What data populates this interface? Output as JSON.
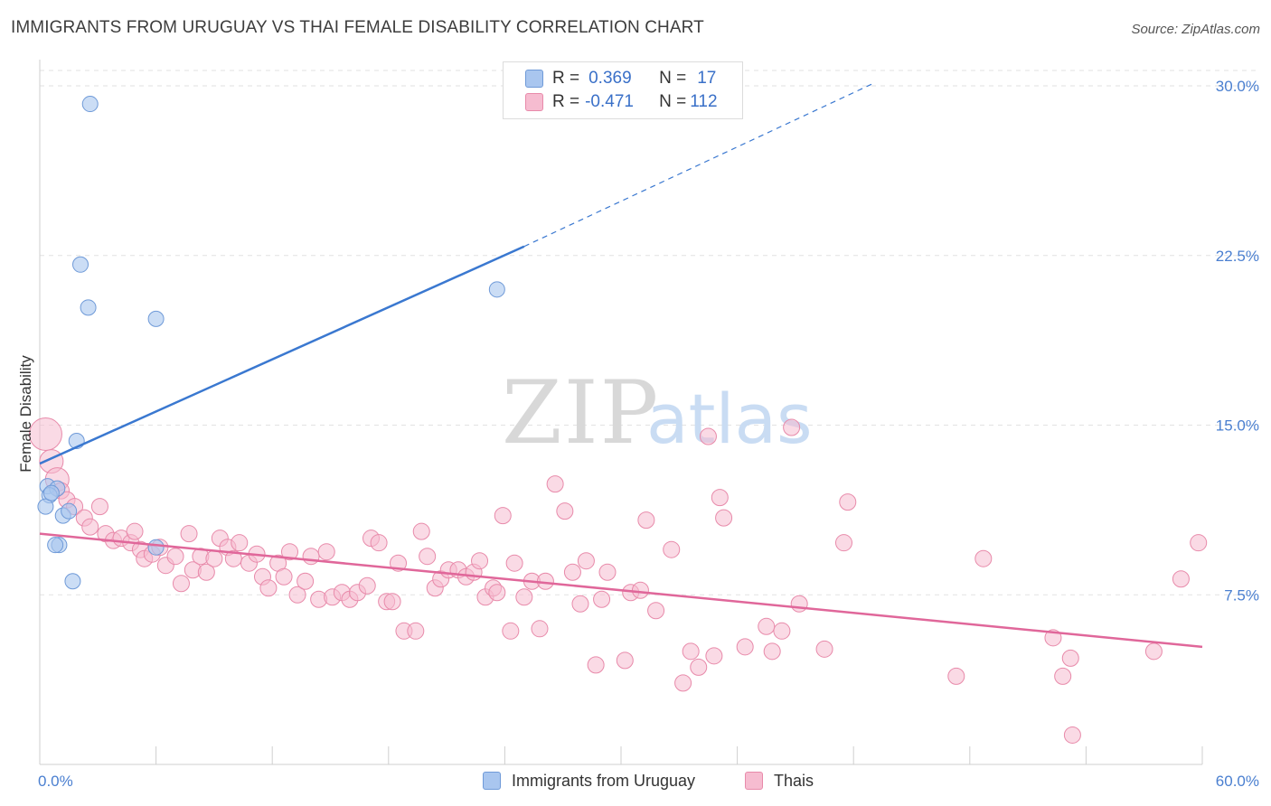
{
  "header": {
    "title": "IMMIGRANTS FROM URUGUAY VS THAI FEMALE DISABILITY CORRELATION CHART",
    "source": "Source: ZipAtlas.com"
  },
  "watermark": {
    "zip": "ZIP",
    "atlas": "atlas"
  },
  "legend": {
    "rows": [
      {
        "r_label": "R =",
        "r_value": "0.369",
        "n_label": "N =",
        "n_value": "17",
        "color": "#a9c6ef",
        "border": "#6f9ad8"
      },
      {
        "r_label": "R =",
        "r_value": "-0.471",
        "n_label": "N =",
        "n_value": "112",
        "color": "#f6bcd0",
        "border": "#e88aaa"
      }
    ]
  },
  "bottom_legend": [
    {
      "label": "Immigrants from Uruguay",
      "color": "#a9c6ef",
      "border": "#6f9ad8"
    },
    {
      "label": "Thais",
      "color": "#f6bcd0",
      "border": "#e88aaa"
    }
  ],
  "chart_data": {
    "type": "scatter",
    "xlabel": "",
    "ylabel": "Female Disability",
    "xlim": [
      0,
      60
    ],
    "ylim": [
      0,
      30.8
    ],
    "x_tick_labels": [
      "0.0%",
      "60.0%"
    ],
    "y_ticks": [
      7.5,
      15.0,
      22.5,
      30.0
    ],
    "y_tick_labels": [
      "7.5%",
      "15.0%",
      "22.5%",
      "30.0%"
    ],
    "grid": "horizontal-dashed",
    "colors": {
      "uruguay": "#3a78d0",
      "thais": "#e0679a"
    },
    "series": [
      {
        "name": "Immigrants from Uruguay",
        "points": [
          [
            2.6,
            29.2
          ],
          [
            2.1,
            22.1
          ],
          [
            2.5,
            20.2
          ],
          [
            6.0,
            19.7
          ],
          [
            23.6,
            21.0
          ],
          [
            1.9,
            14.3
          ],
          [
            0.4,
            12.3
          ],
          [
            0.9,
            12.2
          ],
          [
            0.5,
            11.9
          ],
          [
            0.3,
            11.4
          ],
          [
            1.2,
            11.0
          ],
          [
            1.5,
            11.2
          ],
          [
            1.0,
            9.7
          ],
          [
            0.8,
            9.7
          ],
          [
            6.0,
            9.6
          ],
          [
            1.7,
            8.1
          ],
          [
            0.6,
            12.0
          ]
        ],
        "trend": {
          "x0": 0,
          "y0": 13.3,
          "x1": 25,
          "y1": 22.9,
          "dash_to_x": 43,
          "dash_to_y": 30.1
        }
      },
      {
        "name": "Thais",
        "points": [
          [
            0.3,
            14.6
          ],
          [
            0.6,
            13.4
          ],
          [
            0.9,
            12.6
          ],
          [
            1.1,
            12.1
          ],
          [
            1.4,
            11.7
          ],
          [
            1.8,
            11.4
          ],
          [
            2.3,
            10.9
          ],
          [
            2.6,
            10.5
          ],
          [
            3.1,
            11.4
          ],
          [
            3.4,
            10.2
          ],
          [
            3.8,
            9.9
          ],
          [
            4.2,
            10.0
          ],
          [
            4.7,
            9.8
          ],
          [
            4.9,
            10.3
          ],
          [
            5.2,
            9.5
          ],
          [
            5.4,
            9.1
          ],
          [
            5.8,
            9.3
          ],
          [
            6.2,
            9.6
          ],
          [
            6.5,
            8.8
          ],
          [
            7.0,
            9.2
          ],
          [
            7.3,
            8.0
          ],
          [
            7.7,
            10.2
          ],
          [
            7.9,
            8.6
          ],
          [
            8.3,
            9.2
          ],
          [
            8.6,
            8.5
          ],
          [
            9.0,
            9.1
          ],
          [
            9.3,
            10.0
          ],
          [
            9.7,
            9.6
          ],
          [
            10.0,
            9.1
          ],
          [
            10.3,
            9.8
          ],
          [
            10.8,
            8.9
          ],
          [
            11.2,
            9.3
          ],
          [
            11.5,
            8.3
          ],
          [
            11.8,
            7.8
          ],
          [
            12.3,
            8.9
          ],
          [
            12.6,
            8.3
          ],
          [
            12.9,
            9.4
          ],
          [
            13.3,
            7.5
          ],
          [
            13.7,
            8.1
          ],
          [
            14.0,
            9.2
          ],
          [
            14.4,
            7.3
          ],
          [
            14.8,
            9.4
          ],
          [
            15.1,
            7.4
          ],
          [
            15.6,
            7.6
          ],
          [
            16.0,
            7.3
          ],
          [
            16.4,
            7.6
          ],
          [
            16.9,
            7.9
          ],
          [
            17.1,
            10.0
          ],
          [
            17.5,
            9.8
          ],
          [
            17.9,
            7.2
          ],
          [
            18.2,
            7.2
          ],
          [
            18.5,
            8.9
          ],
          [
            18.8,
            5.9
          ],
          [
            19.4,
            5.9
          ],
          [
            19.7,
            10.3
          ],
          [
            20.0,
            9.2
          ],
          [
            20.4,
            7.8
          ],
          [
            20.7,
            8.2
          ],
          [
            21.1,
            8.6
          ],
          [
            21.6,
            8.6
          ],
          [
            22.0,
            8.3
          ],
          [
            22.4,
            8.5
          ],
          [
            22.7,
            9.0
          ],
          [
            23.0,
            7.4
          ],
          [
            23.4,
            7.8
          ],
          [
            23.6,
            7.6
          ],
          [
            23.9,
            11.0
          ],
          [
            24.3,
            5.9
          ],
          [
            24.5,
            8.9
          ],
          [
            25.0,
            7.4
          ],
          [
            25.4,
            8.1
          ],
          [
            25.8,
            6.0
          ],
          [
            26.1,
            8.1
          ],
          [
            26.6,
            12.4
          ],
          [
            27.1,
            11.2
          ],
          [
            27.5,
            8.5
          ],
          [
            27.9,
            7.1
          ],
          [
            28.2,
            9.0
          ],
          [
            28.7,
            4.4
          ],
          [
            29.0,
            7.3
          ],
          [
            29.3,
            8.5
          ],
          [
            30.2,
            4.6
          ],
          [
            30.5,
            7.6
          ],
          [
            31.0,
            7.7
          ],
          [
            31.3,
            10.8
          ],
          [
            31.8,
            6.8
          ],
          [
            32.6,
            9.5
          ],
          [
            33.2,
            3.6
          ],
          [
            33.6,
            5.0
          ],
          [
            34.0,
            4.3
          ],
          [
            34.5,
            14.5
          ],
          [
            34.8,
            4.8
          ],
          [
            35.1,
            11.8
          ],
          [
            35.3,
            10.9
          ],
          [
            36.4,
            5.2
          ],
          [
            37.5,
            6.1
          ],
          [
            37.8,
            5.0
          ],
          [
            38.3,
            5.9
          ],
          [
            38.8,
            14.9
          ],
          [
            39.2,
            7.1
          ],
          [
            40.5,
            5.1
          ],
          [
            41.5,
            9.8
          ],
          [
            41.7,
            11.6
          ],
          [
            47.3,
            3.9
          ],
          [
            48.7,
            9.1
          ],
          [
            52.3,
            5.6
          ],
          [
            52.8,
            3.9
          ],
          [
            53.2,
            4.7
          ],
          [
            53.3,
            1.3
          ],
          [
            57.5,
            5.0
          ],
          [
            58.9,
            8.2
          ],
          [
            59.8,
            9.8
          ]
        ],
        "trend": {
          "x0": 0,
          "y0": 10.2,
          "x1": 60,
          "y1": 5.2
        }
      }
    ]
  }
}
